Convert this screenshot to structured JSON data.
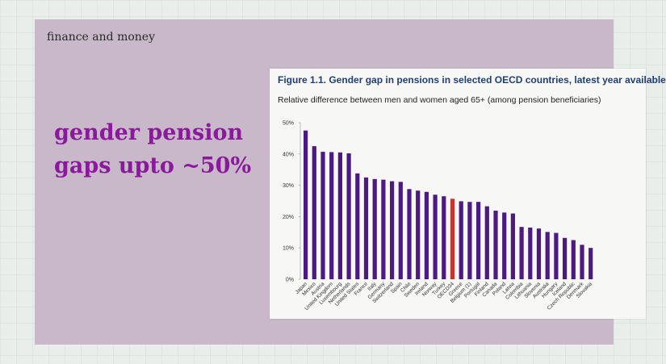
{
  "slide": {
    "topic": "finance and money",
    "headline_line1": "gender pension",
    "headline_line2": "gaps upto ~50%"
  },
  "colors": {
    "background": "#c8b8c9",
    "headline": "#8a1a9b",
    "bar": "#4b1a82",
    "highlight_bar": "#c0392b"
  },
  "chart_data": {
    "type": "bar",
    "title": "Figure 1.1. Gender gap in pensions in selected OECD countries, latest year available",
    "subtitle": "Relative difference between men and women aged 65+ (among pension beneficiaries)",
    "ylim": [
      0,
      50
    ],
    "yticks": [
      "0%",
      "10%",
      "20%",
      "30%",
      "40%",
      "50%"
    ],
    "grid": false,
    "categories": [
      "Japan",
      "Mexico",
      "Austria",
      "United Kingdom",
      "Luxembourg",
      "Netherlands",
      "United States",
      "France",
      "Italy",
      "Germany",
      "Switzerland",
      "Spain",
      "Chile",
      "Sweden",
      "Ireland",
      "Norway",
      "Turkey",
      "OECD34",
      "Greece",
      "Belgium (1)",
      "Portugal",
      "Finland",
      "Canada",
      "Poland",
      "Latvia",
      "Colombia",
      "Lithuania",
      "Slovenia",
      "Australia",
      "Hungary",
      "Iceland",
      "Czech Republic",
      "Denmark",
      "Slovakia"
    ],
    "values": [
      47.5,
      42.5,
      40.7,
      40.6,
      40.5,
      40.2,
      33.8,
      32.5,
      32,
      31.8,
      31.3,
      31.1,
      28.8,
      28.3,
      27.9,
      27,
      26.5,
      25.7,
      24.9,
      24.7,
      24.7,
      23.3,
      21.9,
      21.3,
      21,
      16.7,
      16.5,
      16.2,
      15.1,
      14.8,
      13.2,
      12.5,
      11,
      10
    ]
  }
}
